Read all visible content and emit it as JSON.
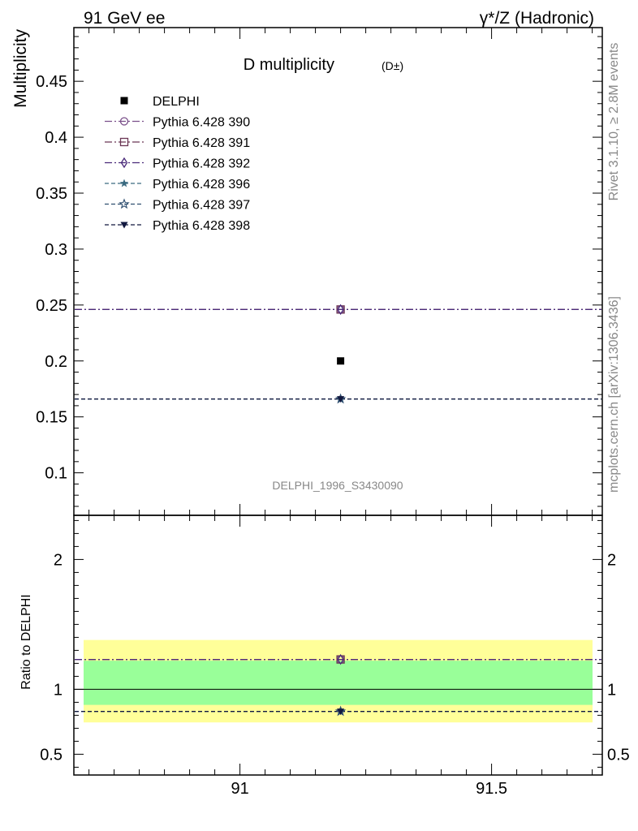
{
  "header": {
    "left": "91 GeV ee",
    "right": "γ*/Z (Hadronic)"
  },
  "side": {
    "rivet": "Rivet 3.1.10, ≥ 2.8M events",
    "mcplots": "mcplots.cern.ch [arXiv:1306.3436]"
  },
  "chart_data": [
    {
      "type": "scatter",
      "title": "D multiplicity",
      "title_suffix": "(D±)",
      "ylabel": "Multiplicity",
      "watermark": "DELPHI_1996_S3430090",
      "xlim": [
        90.67,
        91.72
      ],
      "ylim": [
        0.062,
        0.498
      ],
      "yticks": [
        0.1,
        0.15,
        0.2,
        0.25,
        0.3,
        0.35,
        0.4,
        0.45
      ],
      "ytick_labels": [
        "0.1",
        "0.15",
        "0.2",
        "0.25",
        "0.3",
        "0.35",
        "0.4",
        "0.45"
      ],
      "legend_position": "top-left",
      "data": {
        "name": "DELPHI",
        "x": 91.2,
        "y": 0.2,
        "color": "#000000"
      },
      "series": [
        {
          "name": "Pythia 6.428 390",
          "y": 0.246,
          "marker": "circle-open",
          "dash": "dashdot",
          "color": "#7a4f8a"
        },
        {
          "name": "Pythia 6.428 391",
          "y": 0.246,
          "marker": "square-open",
          "dash": "dashdot",
          "color": "#6b3654"
        },
        {
          "name": "Pythia 6.428 392",
          "y": 0.246,
          "marker": "diamond-open",
          "dash": "dashdot",
          "color": "#4a2a7a"
        },
        {
          "name": "Pythia 6.428 396",
          "y": 0.166,
          "marker": "star-filled",
          "dash": "dashed",
          "color": "#3a6a80"
        },
        {
          "name": "Pythia 6.428 397",
          "y": 0.166,
          "marker": "star-open",
          "dash": "dashed",
          "color": "#2f4f70"
        },
        {
          "name": "Pythia 6.428 398",
          "y": 0.166,
          "marker": "triangle-down-filled",
          "dash": "dashed",
          "color": "#12183f"
        }
      ]
    },
    {
      "type": "scatter",
      "ylabel": "Ratio to DELPHI",
      "xlim": [
        90.67,
        91.72
      ],
      "ylim": [
        0.34,
        2.34
      ],
      "yticks": [
        0.5,
        1,
        2
      ],
      "ytick_labels": [
        "0.5",
        "1",
        "2"
      ],
      "xticks": [
        91,
        91.5
      ],
      "xtick_labels": [
        "91",
        "91.5"
      ],
      "bands": [
        {
          "name": "yellow-band",
          "y": [
            0.745,
            1.38
          ],
          "color": "#ffff99"
        },
        {
          "name": "green-band",
          "y": [
            0.88,
            1.22
          ],
          "color": "#99ff99"
        }
      ],
      "reference": 1.0,
      "series": [
        {
          "name": "Pythia 6.428 390",
          "y": 1.23,
          "marker": "circle-open",
          "dash": "dashdot",
          "color": "#7a4f8a"
        },
        {
          "name": "Pythia 6.428 391",
          "y": 1.23,
          "marker": "square-open",
          "dash": "dashdot",
          "color": "#6b3654"
        },
        {
          "name": "Pythia 6.428 392",
          "y": 1.23,
          "marker": "diamond-open",
          "dash": "dashdot",
          "color": "#4a2a7a"
        },
        {
          "name": "Pythia 6.428 396",
          "y": 0.83,
          "marker": "star-filled",
          "dash": "dashed",
          "color": "#3a6a80"
        },
        {
          "name": "Pythia 6.428 397",
          "y": 0.83,
          "marker": "star-open",
          "dash": "dashed",
          "color": "#2f4f70"
        },
        {
          "name": "Pythia 6.428 398",
          "y": 0.83,
          "marker": "triangle-down-filled",
          "dash": "dashed",
          "color": "#12183f"
        }
      ]
    }
  ]
}
